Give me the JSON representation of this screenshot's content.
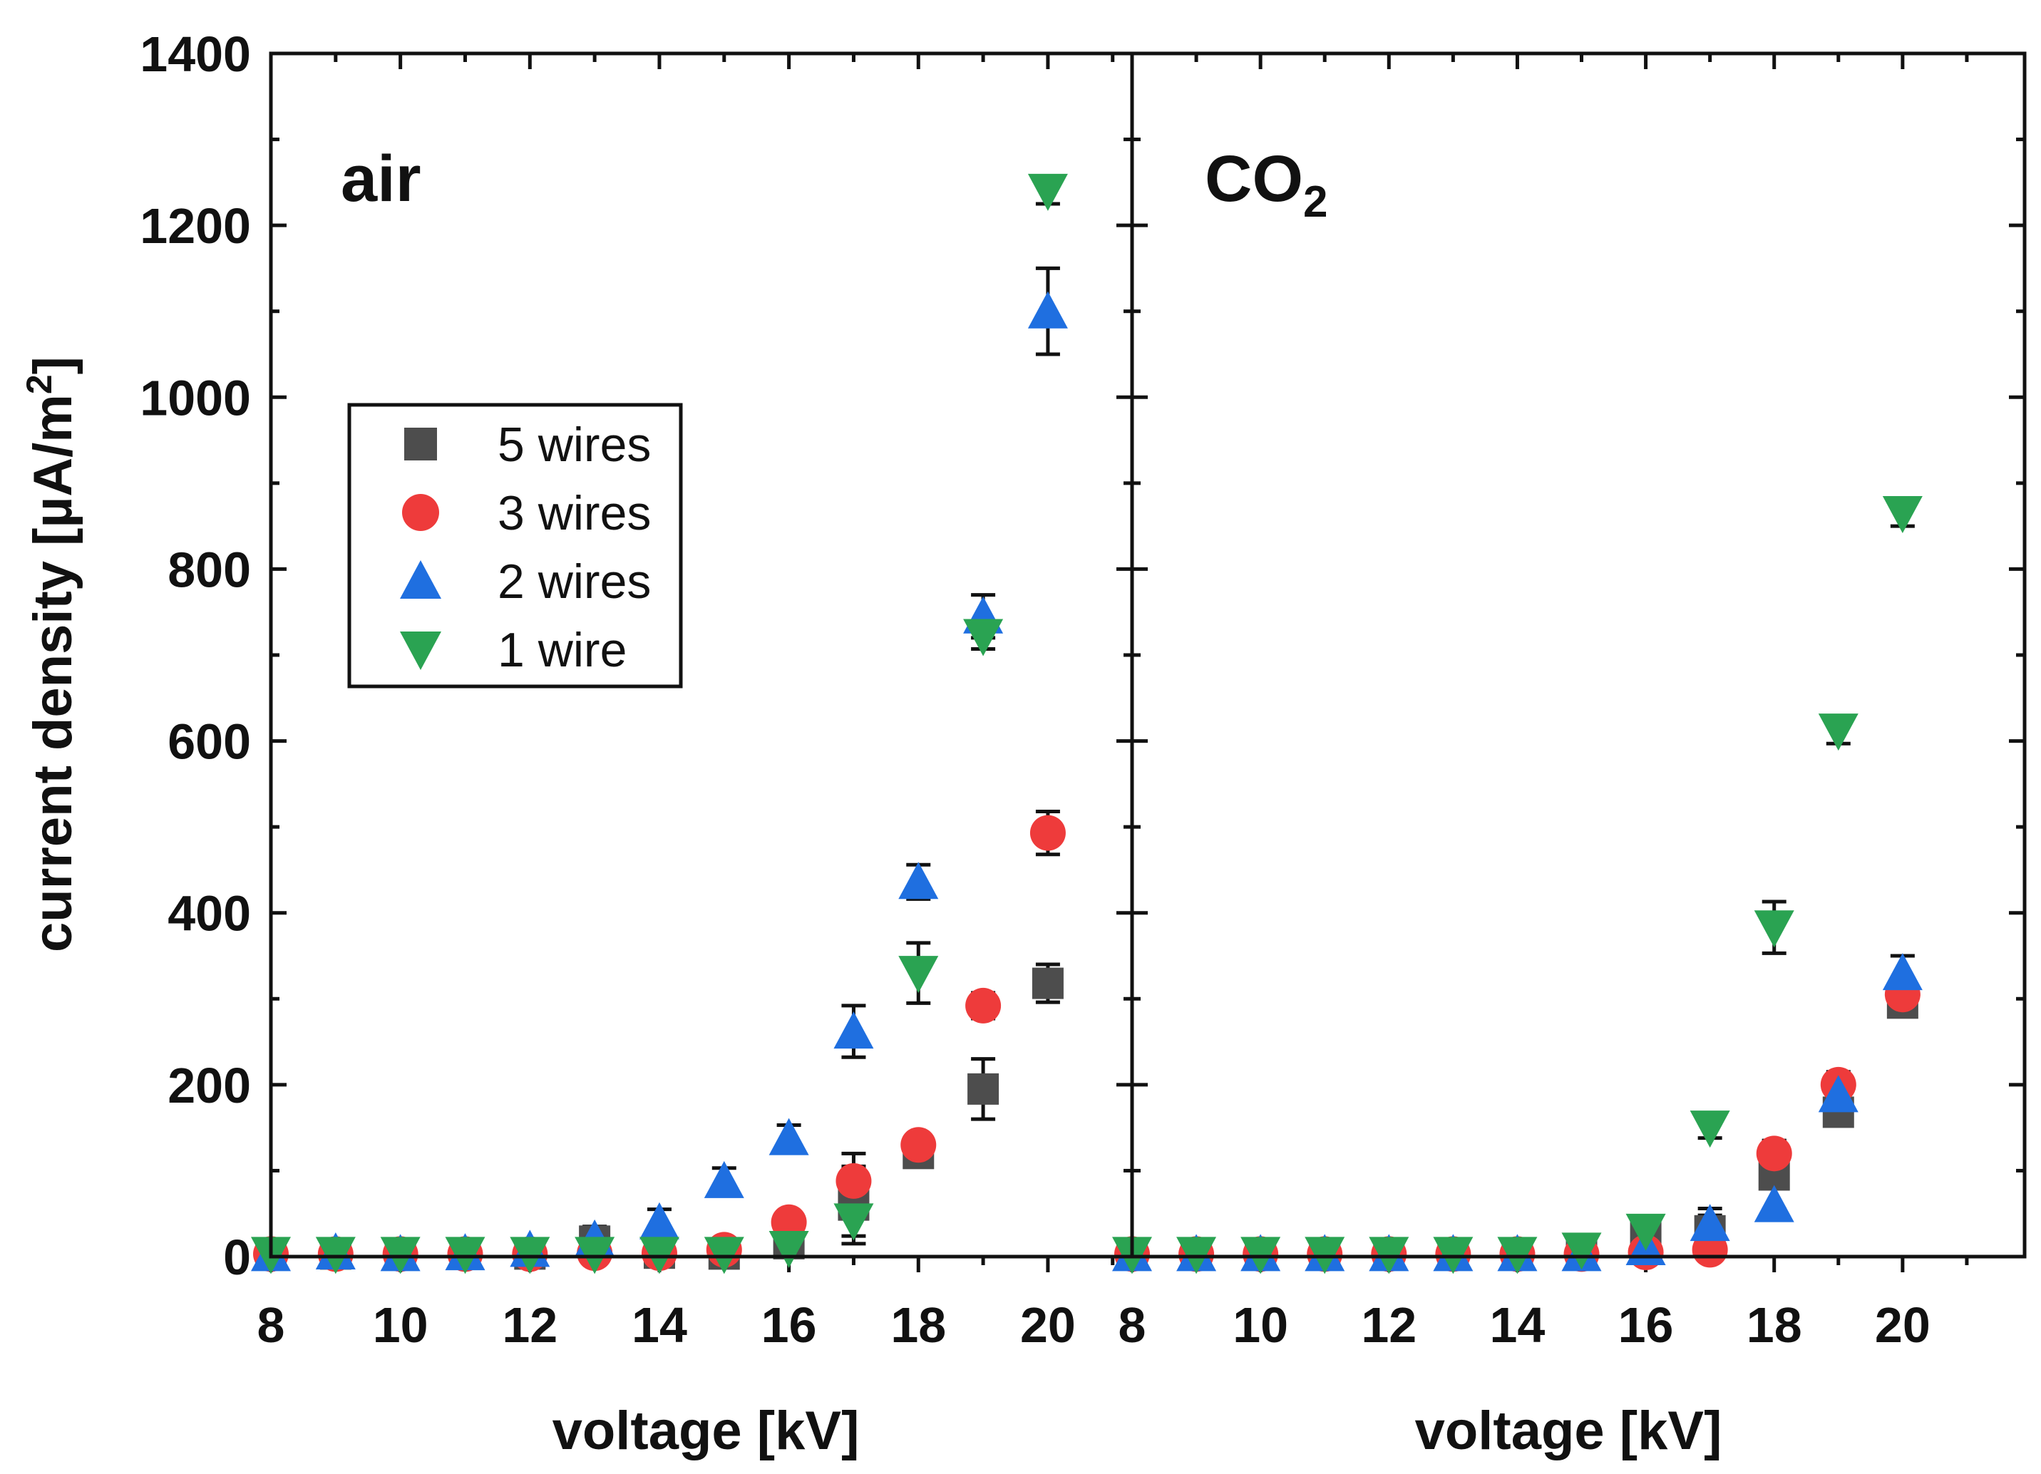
{
  "chart_data": {
    "type": "scatter",
    "ylabel_main": "current density [µA/m",
    "ylabel_sup": "2",
    "ylabel_end": "]",
    "ylim": [
      0,
      1400
    ],
    "yticks": [
      "0",
      "200",
      "400",
      "600",
      "800",
      "1000",
      "1200",
      "1400"
    ],
    "xticks": [
      "8",
      "10",
      "12",
      "14",
      "16",
      "18",
      "20"
    ],
    "legend": [
      {
        "name": "5 wires",
        "marker": "square",
        "color": "#4d4d4d"
      },
      {
        "name": "3 wires",
        "marker": "circle",
        "color": "#ee3b3b"
      },
      {
        "name": "2 wires",
        "marker": "triangle-up",
        "color": "#1f6fe0"
      },
      {
        "name": "1 wire",
        "marker": "triangle-down",
        "color": "#2aa352"
      }
    ],
    "panels": [
      {
        "label": "air",
        "label_sub": "",
        "xlabel": "voltage [kV]",
        "xlim": [
          8,
          21.3
        ],
        "series": [
          {
            "name": "5 wires",
            "points": [
              [
                8,
                3,
                0
              ],
              [
                9,
                3,
                0
              ],
              [
                10,
                3,
                0
              ],
              [
                11,
                3,
                0
              ],
              [
                12,
                3,
                0
              ],
              [
                13,
                18,
                12
              ],
              [
                14,
                4,
                0
              ],
              [
                15,
                3,
                0
              ],
              [
                16,
                15,
                12
              ],
              [
                17,
                60,
                45
              ],
              [
                18,
                120,
                12
              ],
              [
                19,
                195,
                35
              ],
              [
                20,
                318,
                22
              ]
            ]
          },
          {
            "name": "3 wires",
            "points": [
              [
                8,
                3,
                0
              ],
              [
                9,
                3,
                0
              ],
              [
                10,
                3,
                0
              ],
              [
                11,
                3,
                0
              ],
              [
                12,
                3,
                0
              ],
              [
                13,
                4,
                0
              ],
              [
                14,
                4,
                0
              ],
              [
                15,
                8,
                0
              ],
              [
                16,
                40,
                10
              ],
              [
                17,
                88,
                32
              ],
              [
                18,
                130,
                12
              ],
              [
                19,
                292,
                15
              ],
              [
                20,
                493,
                25
              ]
            ]
          },
          {
            "name": "2 wires",
            "points": [
              [
                8,
                3,
                0
              ],
              [
                9,
                5,
                0
              ],
              [
                10,
                3,
                0
              ],
              [
                11,
                4,
                0
              ],
              [
                12,
                8,
                0
              ],
              [
                13,
                20,
                15
              ],
              [
                14,
                40,
                15
              ],
              [
                15,
                88,
                15
              ],
              [
                16,
                138,
                15
              ],
              [
                17,
                262,
                30
              ],
              [
                18,
                436,
                20
              ],
              [
                19,
                745,
                25
              ],
              [
                20,
                1100,
                50
              ]
            ]
          },
          {
            "name": "1 wire",
            "points": [
              [
                8,
                3,
                0
              ],
              [
                9,
                3,
                0
              ],
              [
                10,
                3,
                0
              ],
              [
                11,
                3,
                0
              ],
              [
                12,
                3,
                0
              ],
              [
                13,
                3,
                0
              ],
              [
                14,
                3,
                0
              ],
              [
                15,
                3,
                0
              ],
              [
                16,
                10,
                0
              ],
              [
                17,
                42,
                18
              ],
              [
                18,
                330,
                35
              ],
              [
                19,
                722,
                15
              ],
              [
                20,
                1240,
                15
              ]
            ]
          }
        ]
      },
      {
        "label": "CO",
        "label_sub": "2",
        "xlabel": "voltage [kV]",
        "xlim": [
          8,
          21.9
        ],
        "series": [
          {
            "name": "5 wires",
            "points": [
              [
                8,
                3,
                0
              ],
              [
                9,
                3,
                0
              ],
              [
                10,
                3,
                0
              ],
              [
                11,
                3,
                0
              ],
              [
                12,
                3,
                0
              ],
              [
                13,
                3,
                0
              ],
              [
                14,
                3,
                0
              ],
              [
                15,
                5,
                15
              ],
              [
                16,
                25,
                12
              ],
              [
                17,
                30,
                18
              ],
              [
                18,
                95,
                40
              ],
              [
                19,
                168,
                12
              ],
              [
                20,
                295,
                15
              ]
            ]
          },
          {
            "name": "3 wires",
            "points": [
              [
                8,
                3,
                0
              ],
              [
                9,
                3,
                0
              ],
              [
                10,
                3,
                0
              ],
              [
                11,
                3,
                0
              ],
              [
                12,
                3,
                0
              ],
              [
                13,
                3,
                0
              ],
              [
                14,
                3,
                0
              ],
              [
                15,
                3,
                0
              ],
              [
                16,
                5,
                0
              ],
              [
                17,
                8,
                0
              ],
              [
                18,
                120,
                15
              ],
              [
                19,
                200,
                15
              ],
              [
                20,
                305,
                15
              ]
            ]
          },
          {
            "name": "2 wires",
            "points": [
              [
                8,
                3,
                0
              ],
              [
                9,
                3,
                0
              ],
              [
                10,
                3,
                0
              ],
              [
                11,
                3,
                0
              ],
              [
                12,
                3,
                0
              ],
              [
                13,
                3,
                0
              ],
              [
                14,
                3,
                0
              ],
              [
                15,
                3,
                0
              ],
              [
                16,
                10,
                0
              ],
              [
                17,
                38,
                18
              ],
              [
                18,
                60,
                0
              ],
              [
                19,
                188,
                0
              ],
              [
                20,
                330,
                20
              ]
            ]
          },
          {
            "name": "1 wire",
            "points": [
              [
                8,
                3,
                0
              ],
              [
                9,
                3,
                0
              ],
              [
                10,
                3,
                0
              ],
              [
                11,
                3,
                0
              ],
              [
                12,
                3,
                0
              ],
              [
                13,
                3,
                0
              ],
              [
                14,
                3,
                0
              ],
              [
                15,
                8,
                0
              ],
              [
                16,
                30,
                10
              ],
              [
                17,
                150,
                12
              ],
              [
                18,
                383,
                30
              ],
              [
                19,
                612,
                15
              ],
              [
                20,
                865,
                15
              ]
            ]
          }
        ]
      }
    ]
  }
}
